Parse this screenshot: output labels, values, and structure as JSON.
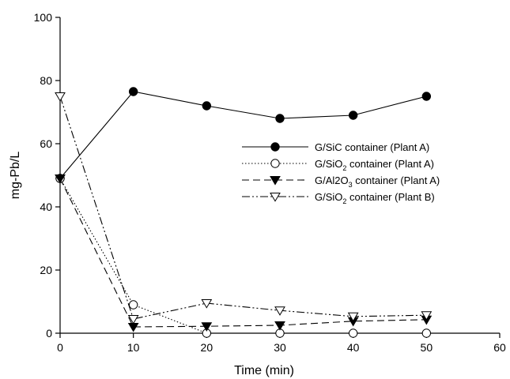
{
  "chart_data": {
    "type": "line",
    "title": "",
    "xlabel": "Time (min)",
    "ylabel": "mg-Pb/L",
    "xlim": [
      0,
      60
    ],
    "ylim": [
      0,
      100
    ],
    "xticks": [
      0,
      10,
      20,
      30,
      40,
      50,
      60
    ],
    "yticks": [
      0,
      20,
      40,
      60,
      80,
      100
    ],
    "grid": false,
    "legend_position": "center-right",
    "series": [
      {
        "name": "G/SiC container (Plant A)",
        "name_parts": [
          "G/SiC container (Plant A)"
        ],
        "marker": "filled-circle",
        "line_style": "solid",
        "x": [
          0,
          10,
          20,
          30,
          40,
          50
        ],
        "y": [
          49,
          76.5,
          72,
          68,
          69,
          75
        ]
      },
      {
        "name": "G/SiO2 container (Plant A)",
        "name_parts": [
          "G/SiO",
          "2",
          " container (Plant A)"
        ],
        "marker": "open-circle",
        "line_style": "dotted",
        "x": [
          0,
          10,
          20,
          30,
          40,
          50
        ],
        "y": [
          49,
          9,
          0,
          0,
          0,
          0
        ]
      },
      {
        "name": "G/Al2O3 container (Plant A)",
        "name_parts": [
          "G/Al2O",
          "3",
          " container (Plant A)"
        ],
        "marker": "filled-triangle-down",
        "line_style": "dashed",
        "x": [
          0,
          10,
          20,
          30,
          40,
          50
        ],
        "y": [
          49,
          2,
          2.2,
          2.5,
          3.8,
          4.3
        ]
      },
      {
        "name": "G/SiO2 container (Plant B)",
        "name_parts": [
          "G/SiO",
          "2",
          " container (Plant B)"
        ],
        "marker": "open-triangle-down",
        "line_style": "dash-dot-dot",
        "x": [
          0,
          10,
          20,
          30,
          40,
          50
        ],
        "y": [
          75,
          4.5,
          9.5,
          7.2,
          5.3,
          5.7
        ]
      }
    ]
  }
}
